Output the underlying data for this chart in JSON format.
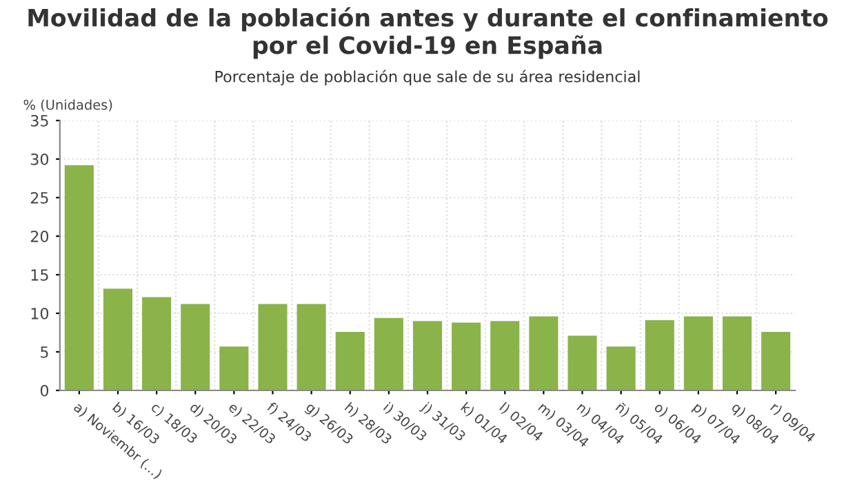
{
  "chart_data": {
    "type": "bar",
    "title": "Movilidad de la población antes y durante el confinamiento por el Covid-19 en España",
    "subtitle": "Porcentaje de población que sale de su área residencial",
    "ylabel": "% (Unidades)",
    "categories": [
      "a) Noviembr (...)",
      "b) 16/03",
      "c) 18/03",
      "d) 20/03",
      "e) 22/03",
      "f) 24/03",
      "g) 26/03",
      "h) 28/03",
      "i) 30/03",
      "j) 31/03",
      "k) 01/04",
      "l) 02/04",
      "m) 03/04",
      "n) 04/04",
      "ñ) 05/04",
      "o) 06/04",
      "p) 07/04",
      "q) 08/04",
      "r) 09/04"
    ],
    "values": [
      29.2,
      13.2,
      12.1,
      11.2,
      5.7,
      11.2,
      11.2,
      7.6,
      9.4,
      9.0,
      8.8,
      9.0,
      9.6,
      7.1,
      5.7,
      9.1,
      9.6,
      9.6,
      7.6
    ],
    "color": "#8ab34a",
    "ylim": [
      0,
      35
    ],
    "yticks": [
      0,
      5,
      10,
      15,
      20,
      25,
      30,
      35
    ],
    "grid": true
  }
}
